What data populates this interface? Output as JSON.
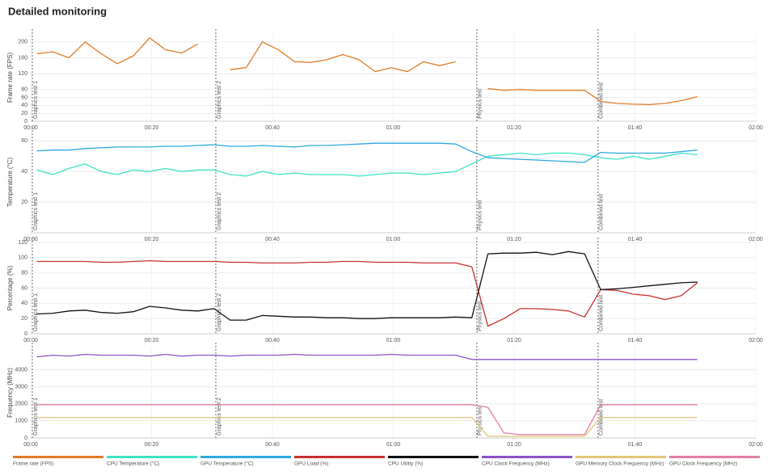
{
  "title": "Detailed monitoring",
  "chart_data": [
    {
      "type": "line",
      "y_label": "Frame rate (FPS)",
      "x": [
        60,
        220,
        380,
        540,
        700,
        860,
        1020,
        1180,
        1340,
        1500,
        1660,
        1820,
        1980,
        2140,
        2300,
        2460,
        2620,
        2780,
        2940,
        3100,
        3260,
        3420,
        3580,
        3740,
        3900,
        4060,
        4220,
        4380,
        4540,
        4700,
        4860,
        5020,
        5180,
        5340,
        5500,
        5660,
        5820,
        5980,
        6140,
        6300,
        6460,
        6620
      ],
      "xlim": [
        0,
        7200
      ],
      "xticks": [
        {
          "value": 0,
          "label": "00:00"
        },
        {
          "value": 1200,
          "label": "00:20"
        },
        {
          "value": 2400,
          "label": "00:40"
        },
        {
          "value": 3600,
          "label": "01:00"
        },
        {
          "value": 4800,
          "label": "01:20"
        },
        {
          "value": 6000,
          "label": "01:40"
        },
        {
          "value": 7200,
          "label": "02:00"
        }
      ],
      "ylim": [
        0,
        220
      ],
      "yticks": [
        0,
        20,
        40,
        60,
        80,
        120,
        160,
        200
      ],
      "grid": true,
      "markers": [
        {
          "label": "Graphics test 1",
          "x": 16
        },
        {
          "label": "Graphics test 2",
          "x": 1838
        },
        {
          "label": "Physics test",
          "x": 4430
        },
        {
          "label": "Combined test",
          "x": 5634
        }
      ],
      "series": [
        {
          "name": "Frame rate (FPS)",
          "color": "#e07b28",
          "values": [
            170,
            175,
            160,
            200,
            170,
            145,
            165,
            210,
            180,
            172,
            195,
            null,
            130,
            135,
            200,
            180,
            150,
            148,
            155,
            168,
            155,
            125,
            135,
            125,
            150,
            140,
            150,
            null,
            82,
            78,
            80,
            78,
            78,
            78,
            78,
            50,
            45,
            43,
            42,
            45,
            52,
            62
          ]
        }
      ]
    },
    {
      "type": "line",
      "y_label": "Temperature (°C)",
      "x": [
        60,
        220,
        380,
        540,
        700,
        860,
        1020,
        1180,
        1340,
        1500,
        1660,
        1820,
        1980,
        2140,
        2300,
        2460,
        2620,
        2780,
        2940,
        3100,
        3260,
        3420,
        3580,
        3740,
        3900,
        4060,
        4220,
        4380,
        4540,
        4700,
        4860,
        5020,
        5180,
        5340,
        5500,
        5660,
        5820,
        5980,
        6140,
        6300,
        6460,
        6620
      ],
      "xlim": [
        0,
        7200
      ],
      "xticks": [
        {
          "value": 0,
          "label": "00:00"
        },
        {
          "value": 1200,
          "label": "00:20"
        },
        {
          "value": 2400,
          "label": "00:40"
        },
        {
          "value": 3600,
          "label": "01:00"
        },
        {
          "value": 4800,
          "label": "01:20"
        },
        {
          "value": 6000,
          "label": "01:40"
        },
        {
          "value": 7200,
          "label": "02:00"
        }
      ],
      "ylim": [
        0,
        66
      ],
      "yticks": [
        20,
        40,
        60
      ],
      "grid": true,
      "markers": [
        {
          "label": "Graphics test 1",
          "x": 16
        },
        {
          "label": "Graphics test 2",
          "x": 1838
        },
        {
          "label": "Physics test",
          "x": 4430
        },
        {
          "label": "Combined test",
          "x": 5634
        }
      ],
      "series": [
        {
          "name": "CPU Temperature (°C)",
          "color": "#3de3c4",
          "values": [
            41,
            38,
            42,
            45,
            40,
            38,
            41,
            40,
            42,
            40,
            41,
            41,
            38,
            37,
            40,
            38,
            39,
            38,
            38,
            38,
            37,
            38,
            39,
            39,
            38,
            39,
            40,
            45,
            50,
            51,
            52,
            51,
            52,
            52,
            51,
            49,
            48,
            50,
            48,
            50,
            52,
            51
          ]
        },
        {
          "name": "GPU Temperature (°C)",
          "color": "#2ea8e0",
          "values": [
            53.5,
            54,
            54,
            55,
            55.5,
            56,
            56,
            56,
            56.5,
            56.5,
            57,
            57.5,
            56.5,
            56.5,
            57,
            56.5,
            56,
            57,
            57,
            57.5,
            58,
            58.5,
            58.5,
            58.5,
            58.5,
            58.5,
            58,
            53,
            49,
            48.5,
            48,
            47.5,
            47,
            46.5,
            46,
            52.5,
            52,
            52,
            52,
            52,
            53,
            54
          ]
        }
      ]
    },
    {
      "type": "line",
      "y_label": "Percentage (%)",
      "x": [
        60,
        220,
        380,
        540,
        700,
        860,
        1020,
        1180,
        1340,
        1500,
        1660,
        1820,
        1980,
        2140,
        2300,
        2460,
        2620,
        2780,
        2940,
        3100,
        3260,
        3420,
        3580,
        3740,
        3900,
        4060,
        4220,
        4380,
        4540,
        4700,
        4860,
        5020,
        5180,
        5340,
        5500,
        5660,
        5820,
        5980,
        6140,
        6300,
        6460,
        6620
      ],
      "xlim": [
        0,
        7200
      ],
      "xticks": [
        {
          "value": 0,
          "label": "00:00"
        },
        {
          "value": 1200,
          "label": "00:20"
        },
        {
          "value": 2400,
          "label": "00:40"
        },
        {
          "value": 3600,
          "label": "01:00"
        },
        {
          "value": 4800,
          "label": "01:20"
        },
        {
          "value": 6000,
          "label": "01:40"
        },
        {
          "value": 7200,
          "label": "02:00"
        }
      ],
      "ylim": [
        0,
        120
      ],
      "yticks": [
        0,
        20,
        40,
        60,
        80,
        100,
        120
      ],
      "grid": true,
      "markers": [
        {
          "label": "Graphics test 1",
          "x": 16
        },
        {
          "label": "Graphics test 2",
          "x": 1838
        },
        {
          "label": "Physics test",
          "x": 4430
        },
        {
          "label": "Combined test",
          "x": 5634
        }
      ],
      "series": [
        {
          "name": "GPU Load (%)",
          "color": "#c8302f",
          "values": [
            95,
            95,
            95,
            95,
            94,
            94,
            95,
            96,
            95,
            95,
            95,
            95,
            94,
            94,
            93,
            93,
            93,
            94,
            94,
            95,
            95,
            94,
            94,
            94,
            93,
            93,
            93,
            88,
            10,
            20,
            33,
            33,
            32,
            30,
            22,
            58,
            57,
            52,
            50,
            45,
            50,
            67
          ]
        },
        {
          "name": "CPU Utility (%)",
          "color": "#111111",
          "values": [
            26,
            27,
            30,
            31,
            28,
            27,
            29,
            36,
            34,
            31,
            30,
            33,
            18,
            18,
            24,
            23,
            22,
            22,
            21,
            21,
            20,
            20,
            21,
            21,
            21,
            21,
            22,
            21,
            105,
            106,
            106,
            107,
            104,
            108,
            105,
            58,
            59,
            61,
            63,
            65,
            67,
            68
          ]
        }
      ]
    },
    {
      "type": "line",
      "y_label": "Frequency (MHz)",
      "x": [
        60,
        220,
        380,
        540,
        700,
        860,
        1020,
        1180,
        1340,
        1500,
        1660,
        1820,
        1980,
        2140,
        2300,
        2460,
        2620,
        2780,
        2940,
        3100,
        3260,
        3420,
        3580,
        3740,
        3900,
        4060,
        4220,
        4380,
        4540,
        4700,
        4860,
        5020,
        5180,
        5340,
        5500,
        5660,
        5820,
        5980,
        6140,
        6300,
        6460,
        6620
      ],
      "xlim": [
        0,
        7200
      ],
      "xticks": [
        {
          "value": 0,
          "label": "00:00"
        },
        {
          "value": 1200,
          "label": "00:20"
        },
        {
          "value": 2400,
          "label": "00:40"
        },
        {
          "value": 3600,
          "label": "01:00"
        },
        {
          "value": 4800,
          "label": "01:20"
        },
        {
          "value": 6000,
          "label": "01:40"
        },
        {
          "value": 7200,
          "label": "02:00"
        }
      ],
      "ylim": [
        0,
        5300
      ],
      "yticks": [
        0,
        1000,
        2000,
        3000,
        4000
      ],
      "grid": true,
      "markers": [
        {
          "label": "Graphics test 1",
          "x": 16
        },
        {
          "label": "Graphics test 2",
          "x": 1838
        },
        {
          "label": "Physics test",
          "x": 4430
        },
        {
          "label": "Combined test",
          "x": 5634
        }
      ],
      "series": [
        {
          "name": "CPU Clock Frequency (MHz)",
          "color": "#8e52c8",
          "values": [
            4750,
            4850,
            4800,
            4900,
            4850,
            4850,
            4850,
            4800,
            4900,
            4800,
            4850,
            4850,
            4800,
            4850,
            4850,
            4850,
            4900,
            4850,
            4850,
            4850,
            4850,
            4850,
            4900,
            4850,
            4850,
            4850,
            4850,
            4600,
            4600,
            4600,
            4600,
            4600,
            4600,
            4600,
            4600,
            4600,
            4600,
            4600,
            4600,
            4600,
            4600,
            4600
          ]
        },
        {
          "name": "GPU Memory Clock Frequency (MHz)",
          "color": "#e3c47a",
          "values": [
            1200,
            1200,
            1200,
            1200,
            1200,
            1200,
            1200,
            1200,
            1200,
            1200,
            1200,
            1200,
            1200,
            1200,
            1200,
            1200,
            1200,
            1200,
            1200,
            1200,
            1200,
            1200,
            1200,
            1200,
            1200,
            1200,
            1200,
            1200,
            100,
            100,
            100,
            100,
            100,
            100,
            100,
            1200,
            1200,
            1200,
            1200,
            1200,
            1200,
            1200
          ]
        },
        {
          "name": "GPU Clock Frequency (MHz)",
          "color": "#e07fa6",
          "values": [
            1950,
            1950,
            1950,
            1950,
            1950,
            1950,
            1950,
            1950,
            1950,
            1950,
            1950,
            1950,
            1950,
            1950,
            1950,
            1950,
            1950,
            1950,
            1950,
            1950,
            1950,
            1950,
            1950,
            1950,
            1950,
            1950,
            1950,
            1950,
            1800,
            300,
            200,
            200,
            200,
            200,
            200,
            1950,
            1950,
            1950,
            1950,
            1950,
            1950,
            1950
          ]
        }
      ]
    }
  ]
}
